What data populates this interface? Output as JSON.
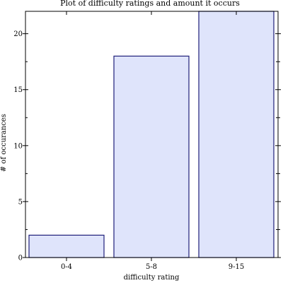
{
  "chart_data": {
    "type": "bar",
    "title": "Plot of difficulty ratings and amount it occurs",
    "xlabel": "difficulty rating",
    "ylabel": "# of occurances",
    "categories": [
      "0-4",
      "5-8",
      "9-15"
    ],
    "values": [
      2,
      18,
      22
    ],
    "ylim": [
      0,
      22
    ],
    "yticks": [
      0,
      5,
      10,
      15,
      20
    ],
    "grid": false,
    "legend": "none",
    "bar_fill": "#dfe4fb",
    "bar_stroke": "#1f1f7a"
  }
}
